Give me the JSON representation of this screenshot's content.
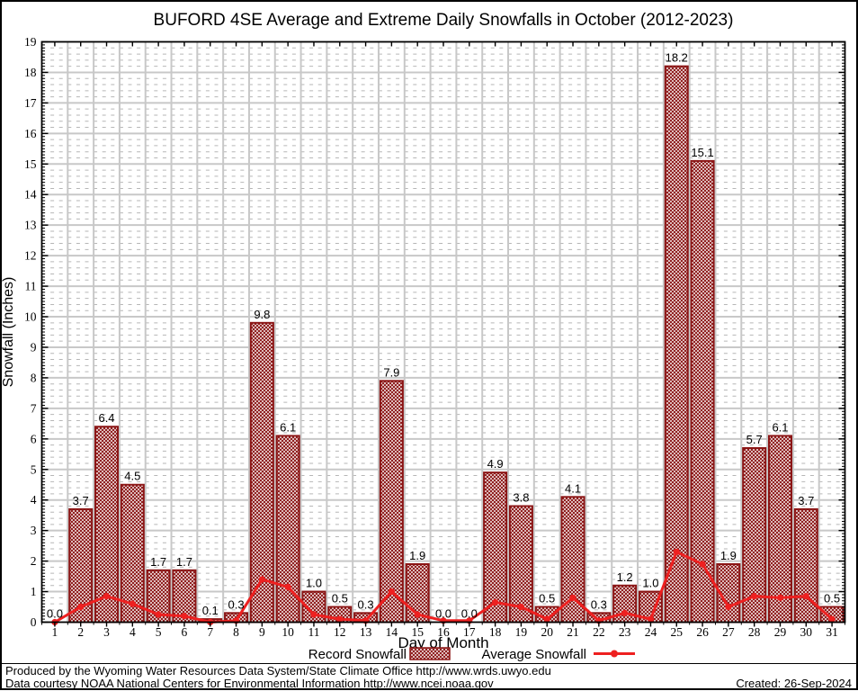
{
  "title": "BUFORD 4SE Average and Extreme Daily Snowfalls in October (2012-2023)",
  "footer": {
    "line1": "Produced by the Wyoming Water Resources Data System/State Climate Office http://www.wrds.uwyo.edu",
    "line2": "Data courtesy NOAA National Centers for Environmental Information http://www.ncei.noaa.gov",
    "created": "Created: 26-Sep-2024"
  },
  "chart_data": {
    "type": "bar",
    "title": "BUFORD 4SE Average and Extreme Daily Snowfalls in October (2012-2023)",
    "xlabel": "Day of Month",
    "ylabel": "Snowfall (Inches)",
    "ylim": [
      0,
      19
    ],
    "y_major_step": 1,
    "y_minor_step": 0.2,
    "grid": "major solid gray, minor dotted gray",
    "legend_position": "bottom-center",
    "categories": [
      1,
      2,
      3,
      4,
      5,
      6,
      7,
      8,
      9,
      10,
      11,
      12,
      13,
      14,
      15,
      16,
      17,
      18,
      19,
      20,
      21,
      22,
      23,
      24,
      25,
      26,
      27,
      28,
      29,
      30,
      31
    ],
    "series": [
      {
        "name": "Record Snowfall",
        "type": "bar",
        "values": [
          0.0,
          3.7,
          6.4,
          4.5,
          1.7,
          1.7,
          0.1,
          0.3,
          9.8,
          6.1,
          1.0,
          0.5,
          0.3,
          7.9,
          1.9,
          0.0,
          0.0,
          4.9,
          3.8,
          0.5,
          4.1,
          0.3,
          1.2,
          1.0,
          18.2,
          15.1,
          1.9,
          5.7,
          6.1,
          3.7,
          0.5
        ]
      },
      {
        "name": "Average Snowfall",
        "type": "line",
        "values": [
          0.0,
          0.5,
          0.85,
          0.6,
          0.25,
          0.2,
          0.0,
          0.05,
          1.4,
          1.15,
          0.25,
          0.1,
          0.05,
          1.0,
          0.25,
          0.05,
          0.05,
          0.65,
          0.5,
          0.1,
          0.8,
          0.05,
          0.3,
          0.1,
          2.3,
          1.9,
          0.5,
          0.85,
          0.8,
          0.85,
          0.1
        ]
      }
    ],
    "bar_labels_shown": true,
    "colors": {
      "bar_hatch": "#8b1515",
      "bar_border": "#8b1515",
      "avg_line": "#ee2020",
      "grid_major": "#c8c8c8",
      "grid_minor": "#b6b6b6",
      "axis": "#000000",
      "text": "#000000",
      "background": "#ffffff"
    }
  }
}
